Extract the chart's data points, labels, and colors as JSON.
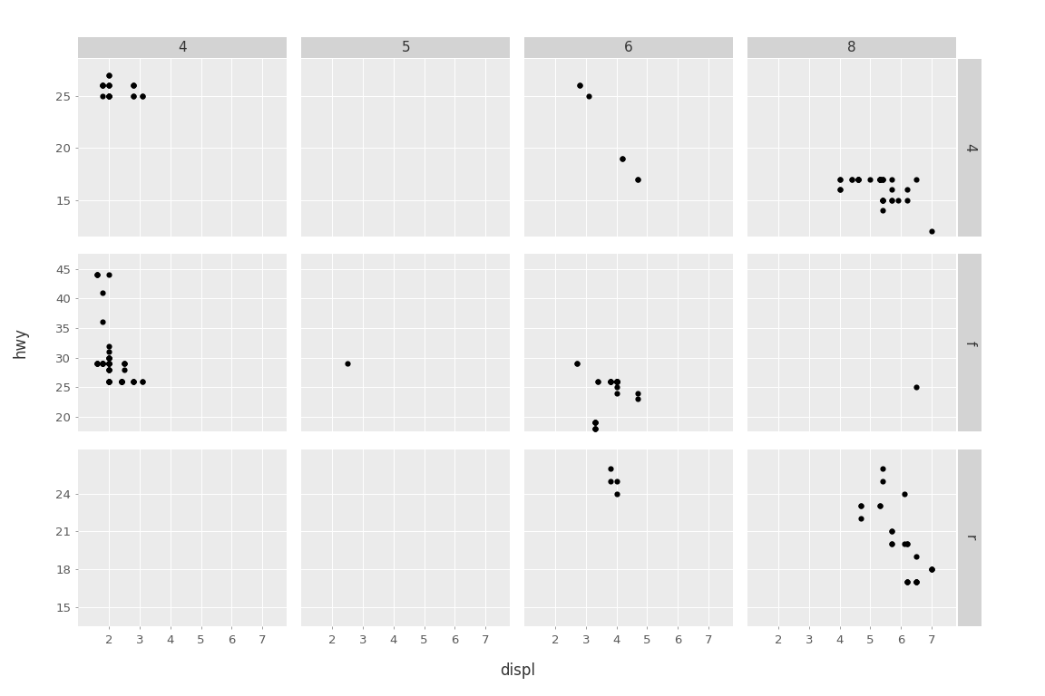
{
  "title_col": [
    "4",
    "5",
    "6",
    "8"
  ],
  "title_row": [
    "4",
    "f",
    "r"
  ],
  "xlabel": "displ",
  "ylabel": "hwy",
  "background_color": "#EBEBEB",
  "strip_color": "#D3D3D3",
  "grid_color": "#FFFFFF",
  "point_color": "#000000",
  "text_color": "#595959",
  "point_size": 20,
  "facet_data": {
    "4_4": {
      "displ": [
        1.8,
        1.8,
        2.0,
        2.0,
        2.0,
        2.8,
        1.8,
        1.8,
        2.0,
        2.0,
        2.8,
        2.8,
        3.1,
        1.8,
        2.0,
        2.0,
        2.8,
        2.8,
        3.1,
        2.0,
        2.0,
        2.0
      ],
      "hwy": [
        26,
        25,
        27,
        25,
        25,
        26,
        26,
        26,
        27,
        25,
        25,
        26,
        25,
        26,
        26,
        25,
        25,
        26,
        25,
        26,
        26,
        25
      ]
    },
    "4_5": {
      "displ": [],
      "hwy": []
    },
    "4_6": {
      "displ": [
        2.8,
        2.8,
        3.1,
        4.2,
        4.2,
        4.7,
        4.7
      ],
      "hwy": [
        26,
        26,
        25,
        19,
        19,
        17,
        17
      ]
    },
    "4_8": {
      "displ": [
        4.4,
        4.4,
        5.4,
        5.4,
        5.3,
        5.3,
        5.3,
        5.3,
        5.7,
        5.9,
        4.6,
        4.6,
        4.6,
        5.4,
        5.4,
        5.4,
        4.0,
        4.0,
        4.0,
        4.0,
        4.6,
        5.0,
        5.4,
        5.4,
        5.7,
        5.7,
        6.2,
        6.2,
        7.0,
        5.3,
        5.3,
        5.7,
        6.5,
        4.6,
        5.4
      ],
      "hwy": [
        17,
        17,
        17,
        17,
        17,
        17,
        17,
        17,
        16,
        15,
        17,
        17,
        17,
        15,
        15,
        15,
        16,
        16,
        17,
        17,
        17,
        17,
        17,
        14,
        15,
        15,
        15,
        16,
        12,
        17,
        17,
        17,
        17,
        17,
        15
      ]
    },
    "f_4": {
      "displ": [
        1.8,
        1.8,
        2.0,
        2.0,
        2.0,
        2.0,
        2.0,
        2.0,
        2.0,
        2.0,
        1.6,
        1.6,
        1.6,
        1.6,
        1.6,
        1.6,
        1.8,
        1.8,
        1.8,
        1.8,
        2.4,
        2.4,
        2.4,
        2.4,
        2.4,
        2.4,
        2.5,
        2.5,
        2.5,
        2.5,
        1.8,
        1.8,
        1.6,
        2.0,
        2.0,
        2.0,
        2.0,
        2.0,
        2.0,
        2.0,
        2.4,
        2.4,
        2.0,
        2.0,
        2.0,
        2.0,
        2.0,
        2.0,
        2.0,
        2.0,
        2.8,
        2.8,
        2.8,
        2.8,
        3.1,
        3.1
      ],
      "hwy": [
        29,
        29,
        31,
        30,
        28,
        29,
        29,
        28,
        30,
        29,
        44,
        44,
        29,
        29,
        29,
        29,
        29,
        29,
        29,
        29,
        26,
        26,
        26,
        26,
        26,
        26,
        29,
        29,
        28,
        29,
        41,
        36,
        44,
        44,
        29,
        29,
        29,
        28,
        28,
        30,
        26,
        26,
        32,
        30,
        26,
        26,
        26,
        26,
        26,
        26,
        26,
        26,
        26,
        26,
        26,
        26
      ]
    },
    "f_5": {
      "displ": [
        2.5
      ],
      "hwy": [
        29
      ]
    },
    "f_6": {
      "displ": [
        3.8,
        3.8,
        3.8,
        3.8,
        3.8,
        4.0,
        4.0,
        4.0,
        4.0,
        4.0,
        4.0,
        4.0,
        4.0,
        2.7,
        2.7,
        3.4,
        3.4,
        4.7,
        4.7,
        4.0,
        4.0,
        4.0,
        4.0,
        4.0,
        4.0,
        3.3,
        3.3,
        3.3,
        3.3,
        3.3,
        3.3,
        3.3
      ],
      "hwy": [
        26,
        26,
        26,
        26,
        26,
        26,
        26,
        26,
        26,
        26,
        26,
        26,
        26,
        29,
        29,
        26,
        26,
        23,
        24,
        26,
        26,
        26,
        26,
        25,
        24,
        19,
        19,
        19,
        18,
        18,
        18,
        19
      ]
    },
    "f_8": {
      "displ": [
        6.5
      ],
      "hwy": [
        25
      ]
    },
    "r_4": {
      "displ": [],
      "hwy": []
    },
    "r_5": {
      "displ": [],
      "hwy": []
    },
    "r_6": {
      "displ": [
        3.8,
        3.8,
        4.0,
        4.0
      ],
      "hwy": [
        26,
        25,
        25,
        24
      ]
    },
    "r_8": {
      "displ": [
        4.7,
        4.7,
        4.7,
        5.7,
        6.1,
        6.2,
        6.2,
        6.2,
        6.2,
        7.0,
        7.0,
        7.0,
        5.3,
        5.3,
        5.7,
        5.7,
        5.7,
        6.5,
        6.2,
        6.5,
        6.5,
        6.5,
        5.4,
        5.4,
        6.1,
        6.5
      ],
      "hwy": [
        23,
        23,
        22,
        20,
        20,
        20,
        17,
        17,
        20,
        18,
        18,
        18,
        23,
        23,
        21,
        21,
        20,
        19,
        17,
        17,
        17,
        17,
        25,
        26,
        24,
        17
      ]
    }
  },
  "ylim_row": {
    "4": [
      11.5,
      28.5
    ],
    "f": [
      17.5,
      47.5
    ],
    "r": [
      13.5,
      27.5
    ]
  },
  "yticks_row": {
    "4": [
      15,
      20,
      25
    ],
    "f": [
      20,
      25,
      30,
      35,
      40,
      45
    ],
    "r": [
      15,
      18,
      21,
      24
    ]
  },
  "xlim": [
    1.0,
    7.8
  ],
  "xticks": [
    2,
    3,
    4,
    5,
    6,
    7
  ]
}
